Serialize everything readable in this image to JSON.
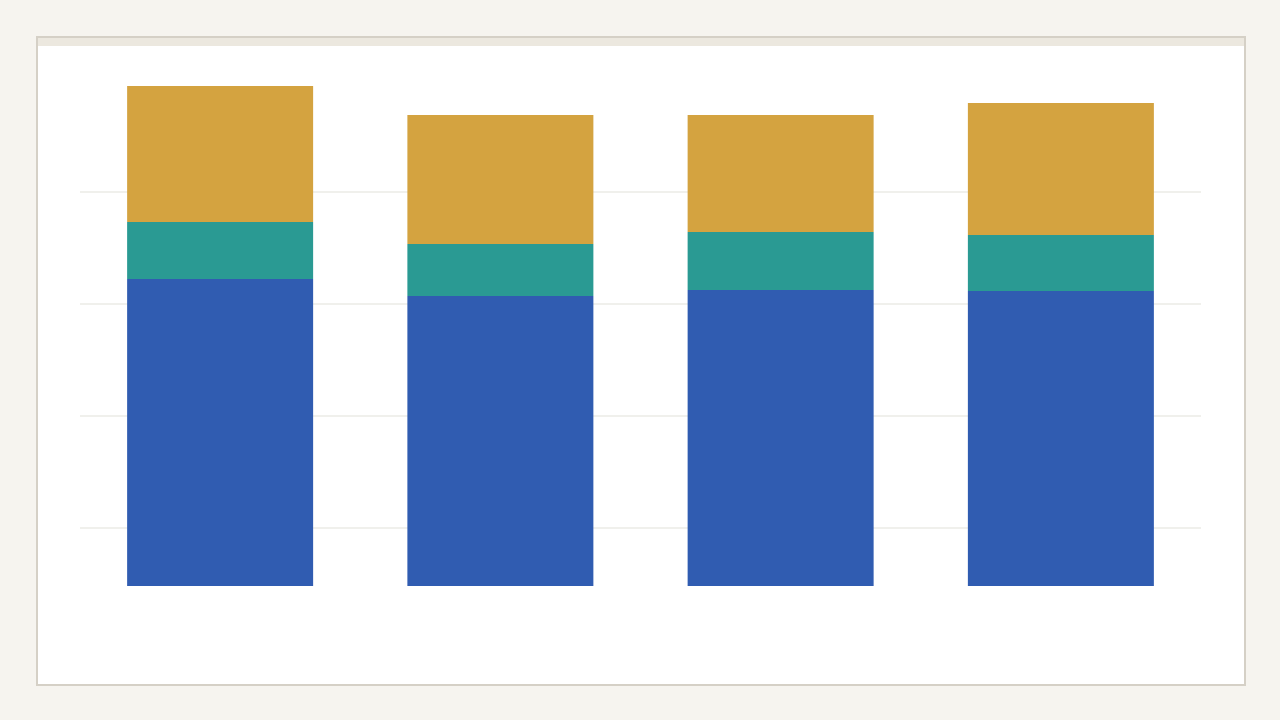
{
  "chart_data": {
    "type": "bar",
    "stacked": true,
    "title": "",
    "xlabel": "",
    "ylabel": "",
    "categories": [
      "",
      "",
      "",
      ""
    ],
    "ylim": [
      0,
      100
    ],
    "gridlines": [
      11.6,
      34,
      56.4,
      78.8
    ],
    "grid": true,
    "series": [
      {
        "values": [
          61.4,
          58.0,
          59.2,
          59.0
        ],
        "color": "#305cb1"
      },
      {
        "values": [
          11.4,
          10.4,
          11.6,
          11.2
        ],
        "color": "#2a9a93"
      },
      {
        "values": [
          27.2,
          25.8,
          23.4,
          26.4
        ],
        "color": "#d4a340"
      }
    ]
  },
  "colors": {
    "background": "#f6f4ef",
    "panel": "#ffffff",
    "border": "#d5d0c6",
    "grid": "#e2e0d8"
  }
}
